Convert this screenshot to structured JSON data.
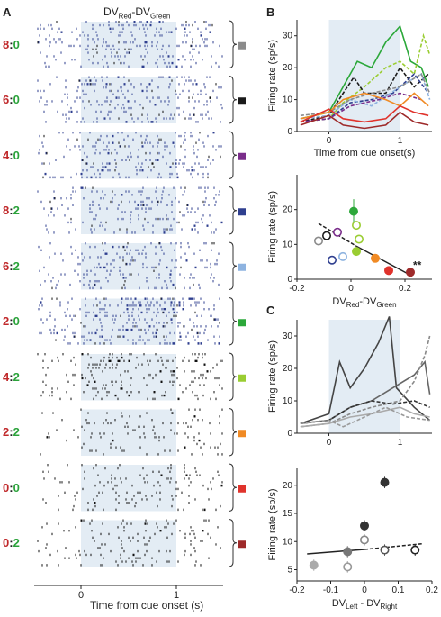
{
  "panels": {
    "A": {
      "letter": "A",
      "title_main": "DV",
      "title_sub1": "Red",
      "title_dash": "-DV",
      "title_sub2": "Green",
      "xlabel": "Time from cue onset (s)",
      "xticks": [
        "0",
        "1"
      ],
      "rows": [
        {
          "red": "8",
          "sep": ":",
          "green": "0",
          "swatch": "#8b8b8b"
        },
        {
          "red": "6",
          "sep": ":",
          "green": "0",
          "swatch": "#1a1a1a"
        },
        {
          "red": "4",
          "sep": ":",
          "green": "0",
          "swatch": "#7a2d8a"
        },
        {
          "red": "8",
          "sep": ":",
          "green": "2",
          "swatch": "#2f3f8f"
        },
        {
          "red": "6",
          "sep": ":",
          "green": "2",
          "swatch": "#8eb3e0"
        },
        {
          "red": "2",
          "sep": ":",
          "green": "0",
          "swatch": "#2ca83a"
        },
        {
          "red": "4",
          "sep": ":",
          "green": "2",
          "swatch": "#9acd32"
        },
        {
          "red": "2",
          "sep": ":",
          "green": "2",
          "swatch": "#f08a24"
        },
        {
          "red": "0",
          "sep": ":",
          "green": "0",
          "swatch": "#e0332c"
        },
        {
          "red": "0",
          "sep": ":",
          "green": "2",
          "swatch": "#9e2a2a"
        }
      ],
      "colors": {
        "red": "#c0282a",
        "green": "#2aa23a",
        "shade": "#e3ecf4",
        "raster_blue": "#2f3f8f",
        "raster_black": "#111111"
      }
    },
    "B": {
      "letter": "B",
      "top": {
        "ylabel": "Firing rate (sp/s)",
        "xlabel": "Time from cue onset(s)",
        "yticks": [
          "0",
          "10",
          "20",
          "30"
        ],
        "xticks": [
          "0",
          "1"
        ]
      },
      "bottom": {
        "ylabel": "Firing rate (sp/s)",
        "xlabel_main": "DV",
        "xlabel_sub1": "Red",
        "xlabel_dash": "-DV",
        "xlabel_sub2": "Green",
        "yticks": [
          "0",
          "10",
          "20"
        ],
        "xticks": [
          "-0.2",
          "0",
          "0.2"
        ],
        "annotation": "**"
      }
    },
    "C": {
      "letter": "C",
      "top": {
        "ylabel": "Firing rate (sp/s)",
        "yticks": [
          "0",
          "10",
          "20",
          "30"
        ],
        "xticks": [
          "0",
          "1"
        ]
      },
      "bottom": {
        "ylabel": "Firing rate (sp/s)",
        "xlabel_main": "DV",
        "xlabel_sub1": "Left",
        "xlabel_dash": " - DV",
        "xlabel_sub2": "Right",
        "yticks": [
          "5",
          "10",
          "15",
          "20"
        ],
        "xticks": [
          "-0.2",
          "-0.1",
          "0",
          "0.1",
          "0.2"
        ]
      }
    }
  },
  "chart_data": [
    {
      "type": "scatter",
      "panel": "B-bottom",
      "xlim": [
        -0.2,
        0.3
      ],
      "ylim": [
        0,
        30
      ],
      "points": [
        {
          "x": -0.12,
          "y": 11,
          "color": "#8b8b8b",
          "filled": false
        },
        {
          "x": -0.09,
          "y": 12.5,
          "color": "#1a1a1a",
          "filled": false
        },
        {
          "x": -0.05,
          "y": 13.5,
          "color": "#7a2d8a",
          "filled": false
        },
        {
          "x": -0.07,
          "y": 5.5,
          "color": "#2f3f8f",
          "filled": false
        },
        {
          "x": -0.03,
          "y": 6.5,
          "color": "#8eb3e0",
          "filled": false
        },
        {
          "x": 0.01,
          "y": 19.5,
          "color": "#2ca83a",
          "filled": true
        },
        {
          "x": 0.02,
          "y": 15.5,
          "color": "#9acd32",
          "filled": false
        },
        {
          "x": 0.03,
          "y": 11.5,
          "color": "#9acd32",
          "filled": false
        },
        {
          "x": 0.02,
          "y": 8,
          "color": "#9acd32",
          "filled": true
        },
        {
          "x": 0.09,
          "y": 6,
          "color": "#f08a24",
          "filled": true
        },
        {
          "x": 0.14,
          "y": 2.5,
          "color": "#e0332c",
          "filled": true
        },
        {
          "x": 0.22,
          "y": 2,
          "color": "#9e2a2a",
          "filled": true
        }
      ]
    },
    {
      "type": "scatter",
      "panel": "C-bottom",
      "xlim": [
        -0.2,
        0.2
      ],
      "ylim": [
        3,
        23
      ],
      "points": [
        {
          "x": -0.15,
          "y": 5.8,
          "color": "#aaaaaa",
          "filled": true
        },
        {
          "x": -0.05,
          "y": 5.5,
          "color": "#999999",
          "filled": false
        },
        {
          "x": -0.05,
          "y": 8.2,
          "color": "#777777",
          "filled": true
        },
        {
          "x": 0.0,
          "y": 10.3,
          "color": "#888888",
          "filled": false
        },
        {
          "x": 0.0,
          "y": 12.8,
          "color": "#333333",
          "filled": true
        },
        {
          "x": 0.06,
          "y": 8.5,
          "color": "#555555",
          "filled": false
        },
        {
          "x": 0.06,
          "y": 20.5,
          "color": "#333333",
          "filled": true
        },
        {
          "x": 0.15,
          "y": 8.5,
          "color": "#222222",
          "filled": false
        }
      ]
    }
  ]
}
